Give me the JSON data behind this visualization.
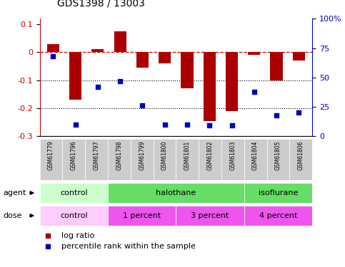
{
  "title": "GDS1398 / 13003",
  "samples": [
    "GSM61779",
    "GSM61796",
    "GSM61797",
    "GSM61798",
    "GSM61799",
    "GSM61800",
    "GSM61801",
    "GSM61802",
    "GSM61803",
    "GSM61804",
    "GSM61805",
    "GSM61806"
  ],
  "log_ratio": [
    0.03,
    -0.17,
    0.01,
    0.075,
    -0.055,
    -0.04,
    -0.13,
    -0.245,
    -0.21,
    -0.01,
    -0.1,
    -0.03
  ],
  "percentile_rank": [
    68,
    10,
    42,
    47,
    26,
    10,
    10,
    9,
    9,
    38,
    18,
    20
  ],
  "ylim_left": [
    -0.3,
    0.12
  ],
  "ylim_right": [
    0,
    100
  ],
  "yticks_left": [
    0.1,
    0,
    -0.1,
    -0.2,
    -0.3
  ],
  "yticks_right": [
    100,
    75,
    50,
    25,
    0
  ],
  "bar_color": "#aa0000",
  "dot_color": "#0000bb",
  "ref_line_color": "#cc0000",
  "grid_color": "#000000",
  "agent_groups": [
    {
      "label": "control",
      "start": 0,
      "end": 3,
      "color": "#ccffcc"
    },
    {
      "label": "halothane",
      "start": 3,
      "end": 9,
      "color": "#66dd66"
    },
    {
      "label": "isoflurane",
      "start": 9,
      "end": 12,
      "color": "#66dd66"
    }
  ],
  "dose_groups": [
    {
      "label": "control",
      "start": 0,
      "end": 3,
      "color": "#ffccff"
    },
    {
      "label": "1 percent",
      "start": 3,
      "end": 6,
      "color": "#ee55ee"
    },
    {
      "label": "3 percent",
      "start": 6,
      "end": 9,
      "color": "#ee55ee"
    },
    {
      "label": "4 percent",
      "start": 9,
      "end": 12,
      "color": "#ee55ee"
    }
  ],
  "legend_log_ratio": "log ratio",
  "legend_percentile": "percentile rank within the sample",
  "bar_width": 0.55,
  "background_color": "#ffffff",
  "tick_label_color_left": "#cc0000",
  "tick_label_color_right": "#0000cc"
}
